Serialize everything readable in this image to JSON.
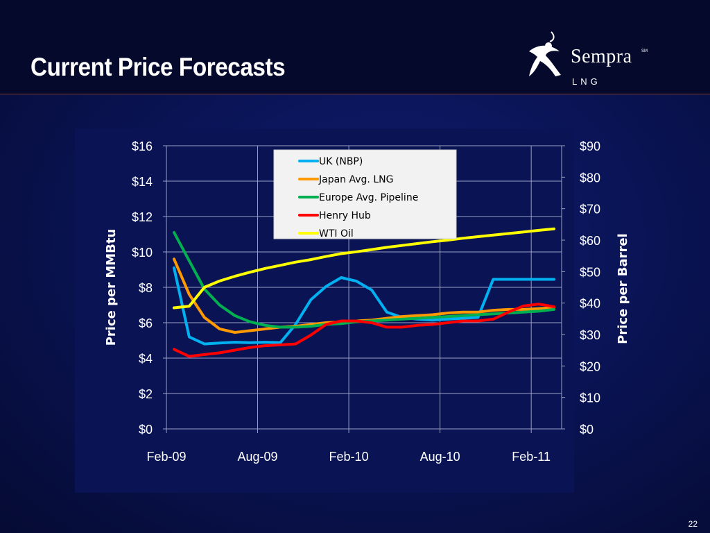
{
  "slide": {
    "title": "Current Price Forecasts",
    "page_number": "22",
    "logo": {
      "name": "Sempra",
      "sub": "LNG",
      "mark": "SM"
    }
  },
  "chart_data": {
    "type": "line",
    "x_ticks": [
      "Feb-09",
      "Aug-09",
      "Feb-10",
      "Aug-10",
      "Feb-11"
    ],
    "x_range": [
      "Feb-09",
      "Apr-11"
    ],
    "y_left": {
      "label": "Price per MMBtu",
      "range": [
        0,
        16
      ],
      "ticks": [
        "$0",
        "$2",
        "$4",
        "$6",
        "$8",
        "$10",
        "$12",
        "$14",
        "$16"
      ]
    },
    "y_right": {
      "label": "Price per Barrel",
      "range": [
        0,
        90
      ],
      "ticks": [
        "$0",
        "$10",
        "$20",
        "$30",
        "$40",
        "$50",
        "$60",
        "$70",
        "$80",
        "$90"
      ]
    },
    "grid": true,
    "legend_position": "top-center",
    "x": [
      "Feb-09",
      "Mar-09",
      "Apr-09",
      "May-09",
      "Jun-09",
      "Jul-09",
      "Aug-09",
      "Sep-09",
      "Oct-09",
      "Nov-09",
      "Dec-09",
      "Jan-10",
      "Feb-10",
      "Mar-10",
      "Apr-10",
      "May-10",
      "Jun-10",
      "Jul-10",
      "Aug-10",
      "Sep-10",
      "Oct-10",
      "Nov-10",
      "Dec-10",
      "Jan-11",
      "Feb-11",
      "Mar-11"
    ],
    "series": [
      {
        "name": "UK (NBP)",
        "color": "#00b0f0",
        "axis": "left",
        "values": [
          9.1,
          5.2,
          4.8,
          4.85,
          4.9,
          4.87,
          4.9,
          4.88,
          5.9,
          7.3,
          8.05,
          8.55,
          8.35,
          7.85,
          6.6,
          6.3,
          6.2,
          6.15,
          6.2,
          6.25,
          6.3,
          8.45,
          8.45,
          8.45,
          8.45,
          8.45
        ]
      },
      {
        "name": "Japan Avg. LNG",
        "color": "#ff9900",
        "axis": "left",
        "values": [
          9.6,
          7.6,
          6.3,
          5.65,
          5.45,
          5.55,
          5.65,
          5.75,
          5.8,
          5.9,
          6.0,
          6.05,
          6.1,
          6.15,
          6.25,
          6.35,
          6.4,
          6.45,
          6.55,
          6.6,
          6.6,
          6.7,
          6.75,
          6.75,
          6.8,
          6.85
        ]
      },
      {
        "name": "Europe Avg. Pipeline",
        "color": "#00b050",
        "axis": "left",
        "values": [
          11.1,
          9.5,
          7.9,
          7.0,
          6.4,
          6.05,
          5.85,
          5.75,
          5.75,
          5.8,
          5.9,
          5.95,
          6.05,
          6.1,
          6.15,
          6.2,
          6.25,
          6.3,
          6.35,
          6.4,
          6.45,
          6.5,
          6.55,
          6.6,
          6.65,
          6.75
        ]
      },
      {
        "name": "Henry Hub",
        "color": "#ff0000",
        "axis": "left",
        "values": [
          4.5,
          4.1,
          4.2,
          4.3,
          4.45,
          4.6,
          4.7,
          4.75,
          4.8,
          5.3,
          5.9,
          6.1,
          6.1,
          6.0,
          5.75,
          5.75,
          5.85,
          5.9,
          6.0,
          6.1,
          6.1,
          6.2,
          6.6,
          6.95,
          7.05,
          6.9
        ]
      },
      {
        "name": "WTI Oil",
        "color": "#ffff00",
        "axis": "right",
        "values": [
          38.5,
          39.0,
          45.0,
          47.0,
          48.5,
          49.8,
          51.0,
          52.0,
          53.0,
          53.8,
          54.8,
          55.7,
          56.3,
          57.0,
          57.7,
          58.3,
          58.9,
          59.5,
          60.0,
          60.6,
          61.1,
          61.6,
          62.1,
          62.6,
          63.1,
          63.6
        ]
      }
    ]
  }
}
